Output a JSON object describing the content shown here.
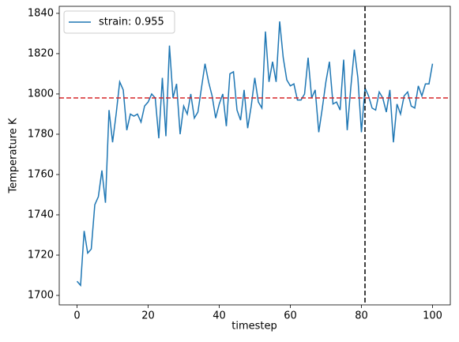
{
  "chart_data": {
    "type": "line",
    "xlabel": "timestep",
    "ylabel": "Temperature K",
    "x": [
      0,
      1,
      2,
      3,
      4,
      5,
      6,
      7,
      8,
      9,
      10,
      11,
      12,
      13,
      14,
      15,
      16,
      17,
      18,
      19,
      20,
      21,
      22,
      23,
      24,
      25,
      26,
      27,
      28,
      29,
      30,
      31,
      32,
      33,
      34,
      35,
      36,
      37,
      38,
      39,
      40,
      41,
      42,
      43,
      44,
      45,
      46,
      47,
      48,
      49,
      50,
      51,
      52,
      53,
      54,
      55,
      56,
      57,
      58,
      59,
      60,
      61,
      62,
      63,
      64,
      65,
      66,
      67,
      68,
      69,
      70,
      71,
      72,
      73,
      74,
      75,
      76,
      77,
      78,
      79,
      80,
      81,
      82,
      83,
      84,
      85,
      86,
      87,
      88,
      89,
      90,
      91,
      92,
      93,
      94,
      95,
      96,
      97,
      98,
      99,
      100
    ],
    "series": [
      {
        "name": "strain: 0.955",
        "color": "#1f77b4",
        "values": [
          1707,
          1705,
          1732,
          1721,
          1723,
          1745,
          1749,
          1762,
          1746,
          1792,
          1776,
          1790,
          1806,
          1802,
          1782,
          1790,
          1789,
          1790,
          1786,
          1794,
          1796,
          1800,
          1798,
          1778,
          1808,
          1779,
          1824,
          1798,
          1805,
          1780,
          1794,
          1790,
          1800,
          1788,
          1791,
          1803,
          1815,
          1806,
          1799,
          1788,
          1795,
          1800,
          1784,
          1810,
          1811,
          1792,
          1787,
          1802,
          1783,
          1794,
          1808,
          1796,
          1793,
          1831,
          1806,
          1816,
          1806,
          1836,
          1818,
          1807,
          1804,
          1805,
          1797,
          1797,
          1800,
          1818,
          1798,
          1802,
          1781,
          1793,
          1806,
          1816,
          1795,
          1796,
          1792,
          1817,
          1782,
          1803,
          1822,
          1808,
          1781,
          1803,
          1799,
          1793,
          1792,
          1801,
          1798,
          1791,
          1802,
          1776,
          1795,
          1790,
          1799,
          1801,
          1794,
          1793,
          1804,
          1799,
          1805,
          1805,
          1815
        ]
      }
    ],
    "xlim": [
      -5,
      105
    ],
    "xticks": [
      0,
      20,
      40,
      60,
      80,
      100
    ],
    "ylim": [
      1695.3,
      1843.5
    ],
    "yticks": [
      1700,
      1720,
      1740,
      1760,
      1780,
      1800,
      1820,
      1840
    ],
    "hline": {
      "value": 1798,
      "color": "#d62728"
    },
    "vline": {
      "value": 81,
      "color": "#000000"
    },
    "legend": "upper left"
  }
}
